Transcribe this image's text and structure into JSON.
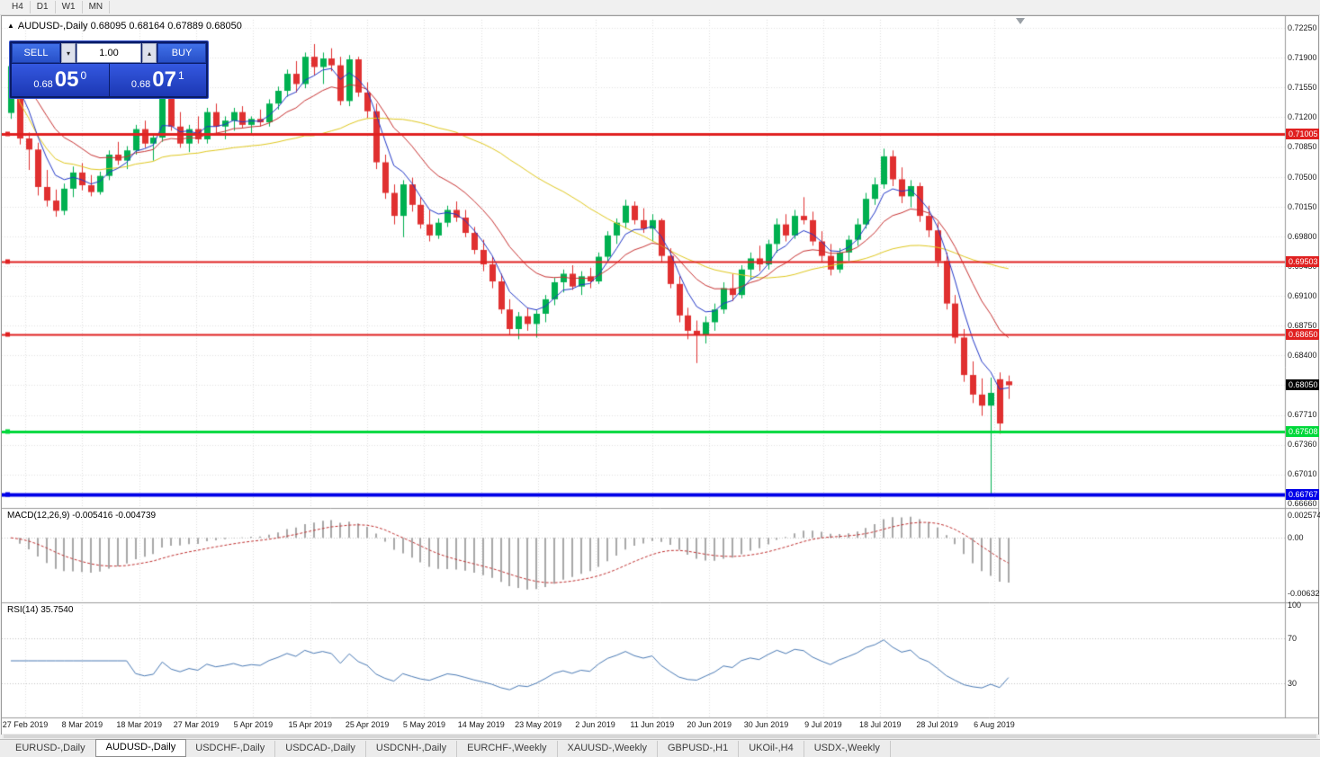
{
  "toolbar": {
    "timeframes": [
      "H4",
      "D1",
      "W1",
      "MN"
    ]
  },
  "chart_header": {
    "title": "AUDUSD-,Daily  0.68095 0.68164 0.67889 0.68050"
  },
  "trade_panel": {
    "sell_label": "SELL",
    "buy_label": "BUY",
    "volume": "1.00",
    "spin_down": "▾",
    "spin_up": "▴",
    "sell_price": {
      "prefix": "0.68",
      "big": "05",
      "sup": "0"
    },
    "buy_price": {
      "prefix": "0.68",
      "big": "07",
      "sup": "1"
    }
  },
  "tabs": [
    {
      "label": "EURUSD-,Daily",
      "active": false
    },
    {
      "label": "AUDUSD-,Daily",
      "active": true
    },
    {
      "label": "USDCHF-,Daily",
      "active": false
    },
    {
      "label": "USDCAD-,Daily",
      "active": false
    },
    {
      "label": "USDCNH-,Daily",
      "active": false
    },
    {
      "label": "EURCHF-,Weekly",
      "active": false
    },
    {
      "label": "XAUUSD-,Weekly",
      "active": false
    },
    {
      "label": "GBPUSD-,H1",
      "active": false
    },
    {
      "label": "UKOil-,H4",
      "active": false
    },
    {
      "label": "USDX-,Weekly",
      "active": false
    }
  ],
  "chart_data": {
    "type": "candlestick",
    "symbol": "AUDUSD",
    "timeframe": "Daily",
    "current_price": "0.68050",
    "y_axis": {
      "max": 0.7225,
      "min": 0.6666,
      "step": 0.0035
    },
    "y_axis_labels": [
      "0.72250",
      "0.71900",
      "0.71550",
      "0.71200",
      "0.70850",
      "0.70500",
      "0.70150",
      "0.69800",
      "0.69450",
      "0.69100",
      "0.68750",
      "0.68400",
      "0.67710",
      "0.67360",
      "0.67010",
      "0.66660"
    ],
    "date_labels": [
      "27 Feb 2019",
      "8 Mar 2019",
      "18 Mar 2019",
      "27 Mar 2019",
      "5 Apr 2019",
      "15 Apr 2019",
      "25 Apr 2019",
      "5 May 2019",
      "14 May 2019",
      "23 May 2019",
      "2 Jun 2019",
      "11 Jun 2019",
      "20 Jun 2019",
      "30 Jun 2019",
      "9 Jul 2019",
      "18 Jul 2019",
      "28 Jul 2019",
      "6 Aug 2019"
    ],
    "hlines": [
      {
        "price": 0.71005,
        "label": "0.71005",
        "color": "#e02020",
        "width": 3
      },
      {
        "price": 0.69503,
        "label": "0.69503",
        "color": "#e02020",
        "width": 2
      },
      {
        "price": 0.6865,
        "label": "0.68650",
        "color": "#e02020",
        "width": 2
      },
      {
        "price": 0.67508,
        "label": "0.67508",
        "color": "#00d83a",
        "width": 3
      },
      {
        "price": 0.66767,
        "label": "0.66767",
        "color": "#0000e8",
        "width": 4
      }
    ],
    "colors": {
      "bull": "#00b050",
      "bear": "#e03030",
      "ma_fast": "#2238c8",
      "ma_mid": "#c83232",
      "ma_slow": "#e0c81e",
      "macd_histogram": "#a8a8a8",
      "macd_signal": "#c03030",
      "rsi_line": "#4a7ab5"
    },
    "indicators": {
      "ma_periods": {
        "fast_ema": 5,
        "mid_ema": 13,
        "slow_sma": 34
      },
      "macd": {
        "label": "MACD(12,26,9) -0.005416 -0.004739",
        "fast": 12,
        "slow": 26,
        "signal": 9,
        "axis_max": 0.002574,
        "axis_min": -0.006326,
        "axis_labels": [
          {
            "label": "0.002574",
            "value": 0.002574
          },
          {
            "label": "0.00",
            "value": 0
          },
          {
            "label": "-0.006326",
            "value": -0.006326
          }
        ]
      },
      "rsi": {
        "label": "RSI(14) 35.7540",
        "period": 14,
        "value": 35.754,
        "levels": [
          70,
          30
        ],
        "axis_labels": [
          {
            "label": "100",
            "value": 100
          },
          {
            "label": "70",
            "value": 70
          },
          {
            "label": "30",
            "value": 30
          }
        ]
      }
    },
    "ohlc": [
      [
        0.7125,
        0.7185,
        0.7118,
        0.718
      ],
      [
        0.718,
        0.7183,
        0.7088,
        0.7095
      ],
      [
        0.7095,
        0.7102,
        0.7058,
        0.7082
      ],
      [
        0.7082,
        0.709,
        0.7028,
        0.7038
      ],
      [
        0.7038,
        0.7058,
        0.7015,
        0.7022
      ],
      [
        0.7022,
        0.7035,
        0.7003,
        0.701
      ],
      [
        0.701,
        0.7042,
        0.7005,
        0.7036
      ],
      [
        0.7036,
        0.7062,
        0.7026,
        0.7055
      ],
      [
        0.7055,
        0.7066,
        0.7034,
        0.704
      ],
      [
        0.704,
        0.7052,
        0.7027,
        0.7032
      ],
      [
        0.7032,
        0.7056,
        0.7029,
        0.7051
      ],
      [
        0.7051,
        0.7081,
        0.7046,
        0.7076
      ],
      [
        0.7076,
        0.7091,
        0.7064,
        0.7069
      ],
      [
        0.7069,
        0.7086,
        0.7059,
        0.7081
      ],
      [
        0.7081,
        0.7111,
        0.7076,
        0.7106
      ],
      [
        0.7106,
        0.7116,
        0.7084,
        0.7089
      ],
      [
        0.7089,
        0.7101,
        0.7069,
        0.7096
      ],
      [
        0.7096,
        0.7166,
        0.7091,
        0.7156
      ],
      [
        0.7156,
        0.7161,
        0.7104,
        0.7109
      ],
      [
        0.7109,
        0.7126,
        0.7084,
        0.7089
      ],
      [
        0.7089,
        0.7111,
        0.7079,
        0.7106
      ],
      [
        0.7106,
        0.7121,
        0.7089,
        0.7094
      ],
      [
        0.7094,
        0.7131,
        0.7089,
        0.7126
      ],
      [
        0.7126,
        0.7136,
        0.7099,
        0.7109
      ],
      [
        0.7109,
        0.7121,
        0.7094,
        0.7116
      ],
      [
        0.7116,
        0.7131,
        0.7104,
        0.7126
      ],
      [
        0.7126,
        0.7133,
        0.7107,
        0.7111
      ],
      [
        0.7111,
        0.7121,
        0.7099,
        0.7118
      ],
      [
        0.7118,
        0.7129,
        0.7109,
        0.7114
      ],
      [
        0.7114,
        0.7141,
        0.7109,
        0.7136
      ],
      [
        0.7136,
        0.7156,
        0.7129,
        0.7151
      ],
      [
        0.7151,
        0.7176,
        0.7144,
        0.7171
      ],
      [
        0.7171,
        0.7186,
        0.7149,
        0.7159
      ],
      [
        0.7159,
        0.7196,
        0.7154,
        0.7191
      ],
      [
        0.7191,
        0.7206,
        0.7169,
        0.7179
      ],
      [
        0.7179,
        0.7196,
        0.7159,
        0.7189
      ],
      [
        0.7189,
        0.7201,
        0.7174,
        0.7181
      ],
      [
        0.7181,
        0.7191,
        0.7134,
        0.7139
      ],
      [
        0.7139,
        0.7193,
        0.7133,
        0.7188
      ],
      [
        0.7188,
        0.7191,
        0.7144,
        0.7149
      ],
      [
        0.7149,
        0.7161,
        0.7119,
        0.7127
      ],
      [
        0.7127,
        0.7136,
        0.7059,
        0.7067
      ],
      [
        0.7067,
        0.7076,
        0.7024,
        0.7031
      ],
      [
        0.7031,
        0.7041,
        0.6994,
        0.7004
      ],
      [
        0.7004,
        0.7046,
        0.6979,
        0.7041
      ],
      [
        0.7041,
        0.7049,
        0.7009,
        0.7017
      ],
      [
        0.7017,
        0.7026,
        0.6989,
        0.6994
      ],
      [
        0.6994,
        0.7011,
        0.6974,
        0.6981
      ],
      [
        0.6981,
        0.7001,
        0.6977,
        0.6996
      ],
      [
        0.6996,
        0.7016,
        0.6991,
        0.7011
      ],
      [
        0.7011,
        0.7021,
        0.6997,
        0.7002
      ],
      [
        0.7002,
        0.7011,
        0.6979,
        0.6984
      ],
      [
        0.6984,
        0.6991,
        0.6959,
        0.6964
      ],
      [
        0.6964,
        0.6976,
        0.6939,
        0.6947
      ],
      [
        0.6947,
        0.6956,
        0.6919,
        0.6927
      ],
      [
        0.6927,
        0.6936,
        0.6889,
        0.6894
      ],
      [
        0.6894,
        0.6906,
        0.6864,
        0.6871
      ],
      [
        0.6871,
        0.6891,
        0.6859,
        0.6886
      ],
      [
        0.6886,
        0.6896,
        0.6869,
        0.6877
      ],
      [
        0.6877,
        0.6893,
        0.6861,
        0.6889
      ],
      [
        0.6889,
        0.6911,
        0.6879,
        0.6906
      ],
      [
        0.6906,
        0.6931,
        0.6899,
        0.6926
      ],
      [
        0.6926,
        0.6941,
        0.6914,
        0.6936
      ],
      [
        0.6936,
        0.6946,
        0.6917,
        0.6921
      ],
      [
        0.6921,
        0.6939,
        0.6911,
        0.6933
      ],
      [
        0.6933,
        0.6943,
        0.6919,
        0.6927
      ],
      [
        0.6927,
        0.6961,
        0.6924,
        0.6956
      ],
      [
        0.6956,
        0.6986,
        0.6949,
        0.6981
      ],
      [
        0.6981,
        0.7001,
        0.6971,
        0.6996
      ],
      [
        0.6996,
        0.7023,
        0.6989,
        0.7016
      ],
      [
        0.7016,
        0.7021,
        0.6994,
        0.6999
      ],
      [
        0.6999,
        0.7013,
        0.6984,
        0.6989
      ],
      [
        0.6989,
        0.7006,
        0.6974,
        0.6999
      ],
      [
        0.6999,
        0.7001,
        0.6949,
        0.6957
      ],
      [
        0.6957,
        0.6966,
        0.6919,
        0.6924
      ],
      [
        0.6924,
        0.6933,
        0.6879,
        0.6887
      ],
      [
        0.6887,
        0.6896,
        0.6859,
        0.6869
      ],
      [
        0.6869,
        0.6881,
        0.6831,
        0.6864
      ],
      [
        0.6864,
        0.6886,
        0.6854,
        0.6879
      ],
      [
        0.6879,
        0.6901,
        0.6869,
        0.6894
      ],
      [
        0.6894,
        0.6926,
        0.6889,
        0.6919
      ],
      [
        0.6919,
        0.6936,
        0.6904,
        0.6911
      ],
      [
        0.6911,
        0.6946,
        0.6907,
        0.6941
      ],
      [
        0.6941,
        0.6961,
        0.6929,
        0.6954
      ],
      [
        0.6954,
        0.6969,
        0.6939,
        0.6947
      ],
      [
        0.6947,
        0.6976,
        0.6941,
        0.6971
      ],
      [
        0.6971,
        0.7001,
        0.6961,
        0.6994
      ],
      [
        0.6994,
        0.7006,
        0.6974,
        0.6981
      ],
      [
        0.6981,
        0.7011,
        0.6977,
        0.7004
      ],
      [
        0.7004,
        0.7026,
        0.6994,
        0.6999
      ],
      [
        0.6999,
        0.7009,
        0.6969,
        0.6974
      ],
      [
        0.6974,
        0.6986,
        0.6949,
        0.6957
      ],
      [
        0.6957,
        0.6971,
        0.6934,
        0.6941
      ],
      [
        0.6941,
        0.6966,
        0.6937,
        0.6961
      ],
      [
        0.6961,
        0.6981,
        0.6951,
        0.6976
      ],
      [
        0.6976,
        0.7001,
        0.6969,
        0.6994
      ],
      [
        0.6994,
        0.7031,
        0.6989,
        0.7024
      ],
      [
        0.7024,
        0.7049,
        0.7017,
        0.7041
      ],
      [
        0.7041,
        0.7083,
        0.7036,
        0.7074
      ],
      [
        0.7074,
        0.7081,
        0.7039,
        0.7047
      ],
      [
        0.7047,
        0.7061,
        0.7019,
        0.7027
      ],
      [
        0.7027,
        0.7046,
        0.7014,
        0.7039
      ],
      [
        0.7039,
        0.7043,
        0.6997,
        0.7004
      ],
      [
        0.7004,
        0.7016,
        0.6979,
        0.6987
      ],
      [
        0.6987,
        0.6996,
        0.6944,
        0.6951
      ],
      [
        0.6951,
        0.6961,
        0.6894,
        0.6901
      ],
      [
        0.6901,
        0.6911,
        0.6854,
        0.6861
      ],
      [
        0.6861,
        0.6871,
        0.6809,
        0.6817
      ],
      [
        0.6817,
        0.6833,
        0.6784,
        0.6794
      ],
      [
        0.6794,
        0.6813,
        0.6769,
        0.6781
      ],
      [
        0.6781,
        0.6814,
        0.6677,
        0.6796
      ],
      [
        0.6812,
        0.682,
        0.6748,
        0.676
      ],
      [
        0.68095,
        0.68164,
        0.67889,
        0.6805
      ]
    ]
  }
}
